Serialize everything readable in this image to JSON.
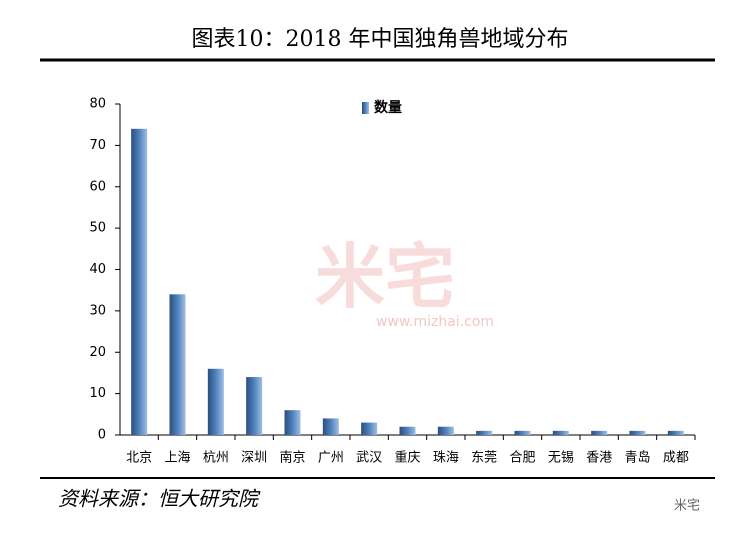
{
  "chart_data": {
    "type": "bar",
    "title": "图表10：2018 年中国独角兽地域分布",
    "source": "资料来源：恒大研究院",
    "watermark": "米宅",
    "watermark_url": "www.mizhai.com",
    "logo_text": "米宅",
    "categories": [
      "北京",
      "上海",
      "杭州",
      "深圳",
      "南京",
      "广州",
      "武汉",
      "重庆",
      "珠海",
      "东莞",
      "合肥",
      "无锡",
      "香港",
      "青岛",
      "成都"
    ],
    "series": [
      {
        "name": "数量",
        "color": "#4f81bd",
        "values": [
          74,
          34,
          16,
          14,
          6,
          4,
          3,
          2,
          2,
          1,
          1,
          1,
          1,
          1,
          1
        ]
      }
    ],
    "ylim": [
      0,
      80
    ],
    "yticks": [
      0,
      10,
      20,
      30,
      40,
      50,
      60,
      70,
      80
    ],
    "grid": false,
    "legend": "top"
  }
}
